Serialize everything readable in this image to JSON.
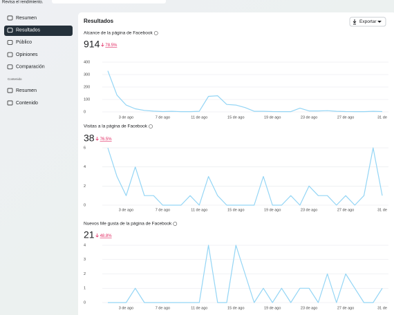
{
  "top_text": "Revisa el rendimiento.",
  "sidebar": {
    "items": [
      "Resumen",
      "Resultados",
      "Público",
      "Opiniones",
      "Comparación"
    ],
    "section": "Contenido",
    "section_items": [
      "Resumen",
      "Contenido"
    ]
  },
  "panel": {
    "title": "Resultados",
    "export": "Exportar"
  },
  "chart_data": [
    {
      "type": "line",
      "title": "Alcance de la página de Facebook",
      "total": 914,
      "change": "78.5%",
      "color": "#93d5f5",
      "categories": [
        null,
        null,
        "3 de ago",
        null,
        null,
        null,
        "7 de ago",
        null,
        null,
        null,
        "11 de ago",
        null,
        null,
        null,
        "15 de ago",
        null,
        null,
        null,
        "19 de ago",
        null,
        null,
        null,
        "23 de ago",
        null,
        null,
        null,
        "27 de ago",
        null,
        null,
        null,
        "31 de"
      ],
      "values": [
        330,
        135,
        55,
        25,
        12,
        6,
        3,
        5,
        2,
        2,
        5,
        125,
        130,
        60,
        55,
        35,
        5,
        5,
        3,
        2,
        2,
        30,
        8,
        8,
        10,
        5,
        3,
        2,
        2,
        5,
        3
      ],
      "ylim": [
        0,
        400
      ],
      "yticks": [
        0,
        100,
        200,
        300,
        400
      ],
      "grid": true
    },
    {
      "type": "line",
      "title": "Visitas a la página de Facebook",
      "total": 38,
      "change": "76.5%",
      "color": "#93d5f5",
      "categories": [
        null,
        null,
        "3 de ago",
        null,
        null,
        null,
        "7 de ago",
        null,
        null,
        null,
        "11 de ago",
        null,
        null,
        null,
        "15 de ago",
        null,
        null,
        null,
        "19 de ago",
        null,
        null,
        null,
        "23 de ago",
        null,
        null,
        null,
        "27 de ago",
        null,
        null,
        null,
        "31 de"
      ],
      "values": [
        6,
        3,
        1,
        4,
        1,
        1,
        0,
        0,
        0,
        1,
        0,
        3,
        1,
        0,
        0,
        0,
        0,
        3,
        0,
        0,
        1,
        0,
        2,
        1,
        1,
        0,
        1,
        0,
        1,
        6,
        1
      ],
      "ylim": [
        0,
        6
      ],
      "yticks": [
        0,
        2,
        4,
        6
      ],
      "grid": true
    },
    {
      "type": "line",
      "title": "Nuevos Me gusta de la página de Facebook",
      "total": 21,
      "change": "48.8%",
      "color": "#93d5f5",
      "categories": [
        null,
        null,
        "3 de ago",
        null,
        null,
        null,
        "7 de ago",
        null,
        null,
        null,
        "11 de ago",
        null,
        null,
        null,
        "15 de ago",
        null,
        null,
        null,
        "19 de ago",
        null,
        null,
        null,
        "23 de ago",
        null,
        null,
        null,
        "27 de ago",
        null,
        null,
        null,
        "31 de"
      ],
      "values": [
        0,
        0,
        0,
        1,
        0,
        0,
        0,
        0,
        0,
        0,
        0,
        4,
        0,
        0,
        4,
        2,
        0,
        1,
        0,
        1,
        0,
        1,
        1,
        0,
        2,
        0,
        2,
        1,
        0,
        0,
        1
      ],
      "ylim": [
        0,
        4
      ],
      "yticks": [
        0,
        1,
        2,
        3,
        4
      ],
      "grid": true
    }
  ]
}
